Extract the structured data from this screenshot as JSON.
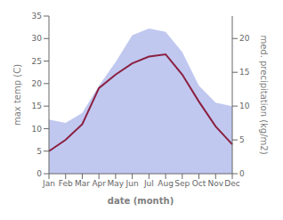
{
  "chart_data": {
    "type": "line",
    "xlabel": "date (month)",
    "ylabel": "max temp (C)",
    "y2label": "med. precipitation (kg/m2)",
    "categories": [
      "Jan",
      "Feb",
      "Mar",
      "Apr",
      "May",
      "Jun",
      "Jul",
      "Aug",
      "Sep",
      "Oct",
      "Nov",
      "Dec"
    ],
    "series": [
      {
        "type": "area",
        "axis": "y2",
        "color": "#c0c8f0",
        "values": [
          8.0,
          7.5,
          9.0,
          13.0,
          16.5,
          20.5,
          21.5,
          21.0,
          18.0,
          13.0,
          10.5,
          10.0
        ]
      },
      {
        "type": "line",
        "color": "#8B2040",
        "values": [
          5.0,
          7.5,
          11.0,
          19.0,
          22.0,
          24.5,
          26.0,
          26.5,
          22.0,
          16.0,
          10.5,
          6.5
        ]
      }
    ],
    "ylim": [
      0,
      35
    ],
    "yticks": [
      0,
      5,
      10,
      15,
      20,
      25,
      30,
      35
    ],
    "y2lim": [
      0,
      23.33
    ],
    "y2ticks": [
      0,
      5,
      10,
      15,
      20
    ],
    "grid": false
  }
}
